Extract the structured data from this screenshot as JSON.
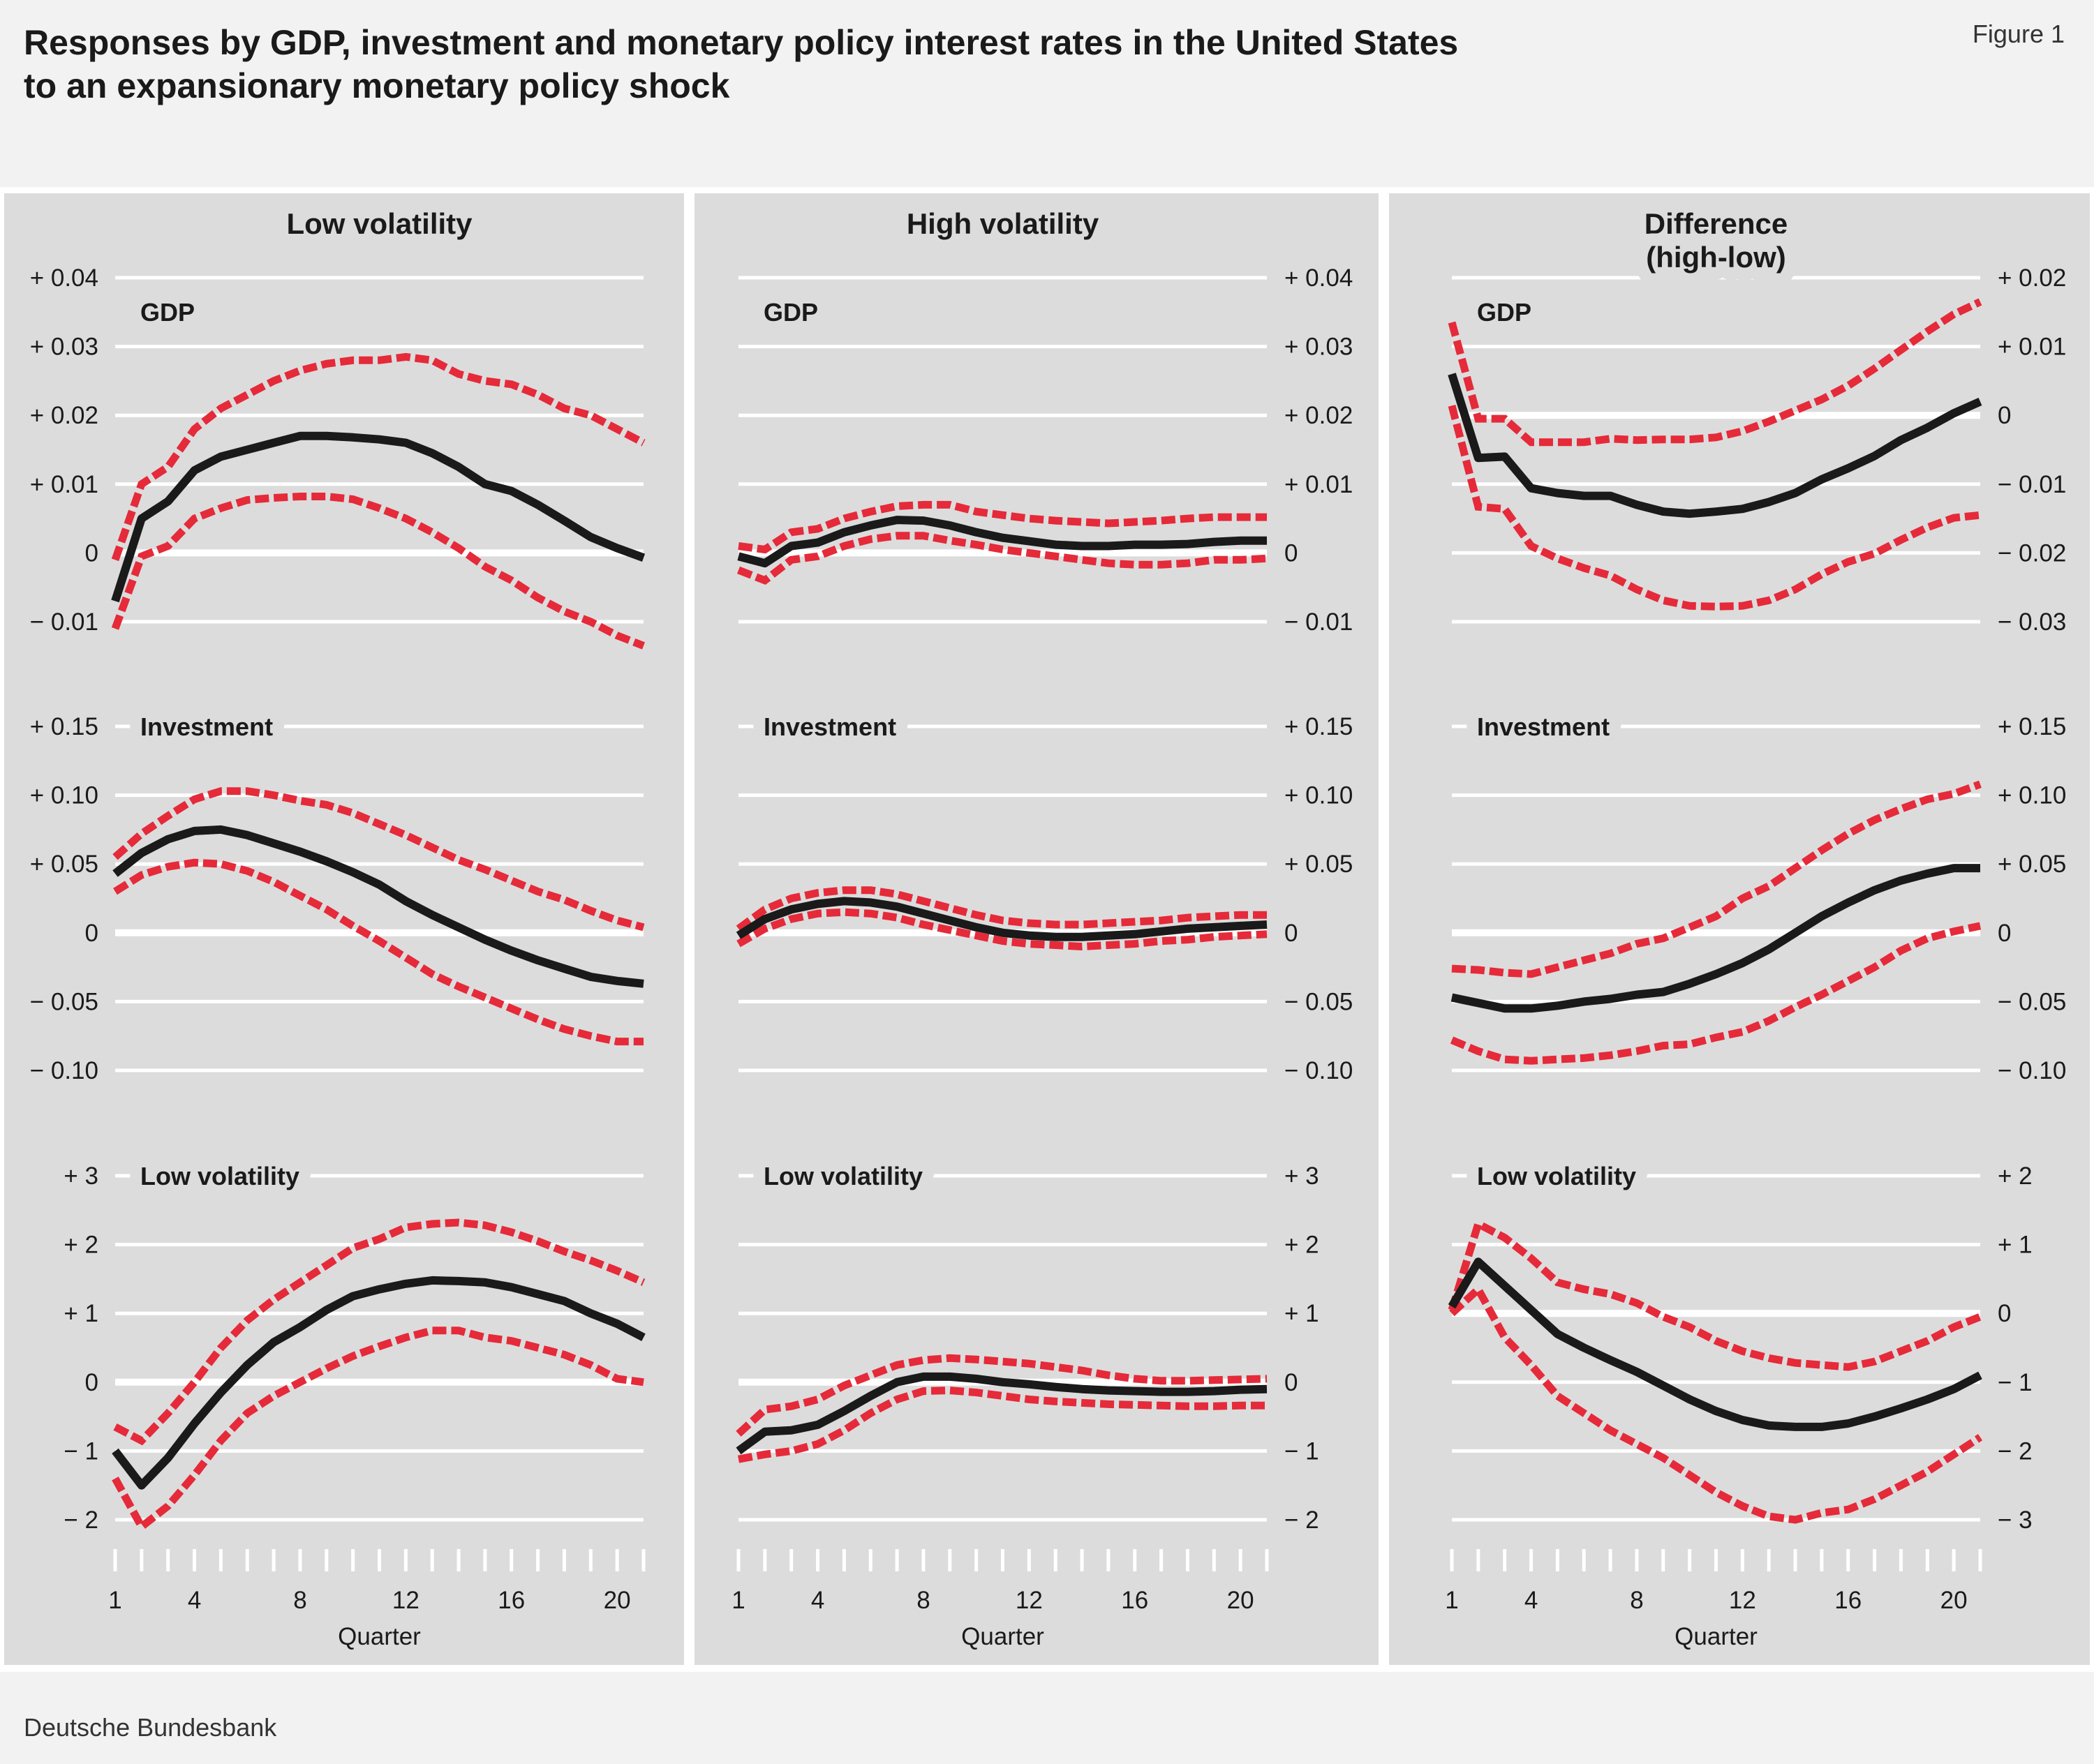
{
  "header": {
    "title_line1": "Responses by GDP, investment and monetary policy interest rates in the United States",
    "title_line2": "to an expansionary monetary policy shock",
    "figure_label": "Figure 1"
  },
  "footer": {
    "source": "Deutsche Bundesbank"
  },
  "colors": {
    "page_bg": "#f2f2f2",
    "panel_bg": "#dcdcdc",
    "grid": "#ffffff",
    "response": "#1a1a1a",
    "band": "#e52a3a"
  },
  "chart_data": {
    "type": "line",
    "columns": [
      "Low volatility",
      "High volatility",
      "Difference (high-low)"
    ],
    "column_headers": [
      [
        "Low volatility"
      ],
      [
        "High volatility"
      ],
      [
        "Difference",
        "(high-low)"
      ]
    ],
    "x": [
      1,
      2,
      3,
      4,
      5,
      6,
      7,
      8,
      9,
      10,
      11,
      12,
      13,
      14,
      15,
      16,
      17,
      18,
      19,
      20,
      21
    ],
    "xlabel": "Quarter",
    "xtick_labels": [
      "1",
      "4",
      "8",
      "12",
      "16",
      "20"
    ],
    "xtick_values": [
      1,
      4,
      8,
      12,
      16,
      20
    ],
    "grid": true,
    "line_styles": {
      "response": "solid black",
      "bands": "dashed red"
    },
    "panels": [
      [
        {
          "label": "GDP",
          "ylim": [
            -0.01,
            0.04
          ],
          "yticks": [
            0.04,
            0.03,
            0.02,
            0.01,
            0,
            -0.01
          ],
          "ytick_labels": [
            "+ 0.04",
            "+ 0.03",
            "+ 0.02",
            "+ 0.01",
            "0",
            "− 0.01"
          ],
          "response": [
            -0.007,
            0.005,
            0.0075,
            0.012,
            0.014,
            0.015,
            0.016,
            0.017,
            0.017,
            0.0168,
            0.0165,
            0.016,
            0.0145,
            0.0125,
            0.01,
            0.009,
            0.007,
            0.0047,
            0.0023,
            0.0007,
            -0.0007
          ],
          "upper": [
            -0.001,
            0.01,
            0.0125,
            0.018,
            0.021,
            0.023,
            0.025,
            0.0265,
            0.0275,
            0.028,
            0.028,
            0.0285,
            0.028,
            0.026,
            0.025,
            0.0245,
            0.023,
            0.021,
            0.02,
            0.018,
            0.016
          ],
          "lower": [
            -0.011,
            -0.0005,
            0.001,
            0.005,
            0.0065,
            0.0077,
            0.008,
            0.0082,
            0.0082,
            0.0078,
            0.0065,
            0.005,
            0.003,
            0.0007,
            -0.002,
            -0.004,
            -0.0065,
            -0.0085,
            -0.01,
            -0.012,
            -0.0135
          ]
        },
        {
          "label": "GDP",
          "ylim": [
            -0.01,
            0.04
          ],
          "yticks": [
            0.04,
            0.03,
            0.02,
            0.01,
            0,
            -0.01
          ],
          "ytick_labels": [
            "+ 0.04",
            "+ 0.03",
            "+ 0.02",
            "+ 0.01",
            "0",
            "− 0.01"
          ],
          "response": [
            -0.0005,
            -0.0015,
            0.001,
            0.0015,
            0.003,
            0.004,
            0.0048,
            0.0047,
            0.004,
            0.003,
            0.0022,
            0.0017,
            0.0012,
            0.001,
            0.001,
            0.0012,
            0.0012,
            0.0013,
            0.0016,
            0.0018,
            0.0018
          ],
          "upper": [
            0.001,
            0.0005,
            0.003,
            0.0035,
            0.005,
            0.006,
            0.0068,
            0.007,
            0.007,
            0.006,
            0.0055,
            0.005,
            0.0047,
            0.0045,
            0.0043,
            0.0045,
            0.0047,
            0.005,
            0.0052,
            0.0052,
            0.0052
          ],
          "lower": [
            -0.0025,
            -0.004,
            -0.001,
            -0.0005,
            0.001,
            0.002,
            0.0025,
            0.0025,
            0.0018,
            0.0012,
            0.0005,
            0,
            -0.0005,
            -0.001,
            -0.0015,
            -0.0017,
            -0.0017,
            -0.0015,
            -0.001,
            -0.001,
            -0.0008
          ]
        },
        {
          "label": "GDP",
          "ylim": [
            -0.03,
            0.02
          ],
          "yticks": [
            0.02,
            0.01,
            0,
            -0.01,
            -0.02,
            -0.03
          ],
          "ytick_labels": [
            "+ 0.02",
            "+ 0.01",
            "0",
            "− 0.01",
            "− 0.02",
            "− 0.03"
          ],
          "response": [
            0.006,
            -0.0062,
            -0.006,
            -0.0106,
            -0.0113,
            -0.0117,
            -0.0117,
            -0.013,
            -0.014,
            -0.0143,
            -0.014,
            -0.0136,
            -0.0126,
            -0.0113,
            -0.0093,
            -0.0077,
            -0.0059,
            -0.0036,
            -0.0018,
            0.0003,
            0.002
          ],
          "upper": [
            0.0135,
            -0.0005,
            -0.0005,
            -0.0039,
            -0.0039,
            -0.0039,
            -0.0034,
            -0.0036,
            -0.0035,
            -0.0035,
            -0.0032,
            -0.0023,
            -0.0009,
            0.0007,
            0.0023,
            0.0043,
            0.0068,
            0.0095,
            0.0122,
            0.0147,
            0.0165
          ],
          "lower": [
            0.0014,
            -0.0133,
            -0.0136,
            -0.019,
            -0.0208,
            -0.0222,
            -0.0233,
            -0.0253,
            -0.0269,
            -0.0277,
            -0.0278,
            -0.0277,
            -0.0269,
            -0.0253,
            -0.0231,
            -0.0213,
            -0.0201,
            -0.0181,
            -0.0163,
            -0.0149,
            -0.0145
          ]
        }
      ],
      [
        {
          "label": "Investment",
          "ylim": [
            -0.1,
            0.15
          ],
          "yticks": [
            0.15,
            0.1,
            0.05,
            0,
            -0.05,
            -0.1
          ],
          "ytick_labels": [
            "+ 0.15",
            "+ 0.10",
            "+ 0.05",
            "0",
            "− 0.05",
            "− 0.10"
          ],
          "response": [
            0.043,
            0.058,
            0.068,
            0.074,
            0.075,
            0.071,
            0.065,
            0.059,
            0.052,
            0.044,
            0.035,
            0.023,
            0.013,
            0.004,
            -0.005,
            -0.013,
            -0.02,
            -0.026,
            -0.032,
            -0.035,
            -0.037
          ],
          "upper": [
            0.055,
            0.072,
            0.085,
            0.097,
            0.103,
            0.103,
            0.1,
            0.096,
            0.093,
            0.087,
            0.079,
            0.071,
            0.062,
            0.053,
            0.046,
            0.038,
            0.03,
            0.024,
            0.016,
            0.009,
            0.004
          ],
          "lower": [
            0.03,
            0.042,
            0.048,
            0.051,
            0.05,
            0.045,
            0.037,
            0.027,
            0.017,
            0.005,
            -0.006,
            -0.018,
            -0.03,
            -0.039,
            -0.047,
            -0.055,
            -0.063,
            -0.07,
            -0.075,
            -0.079,
            -0.079
          ]
        },
        {
          "label": "Investment",
          "ylim": [
            -0.1,
            0.15
          ],
          "yticks": [
            0.15,
            0.1,
            0.05,
            0,
            -0.05,
            -0.1
          ],
          "ytick_labels": [
            "+ 0.15",
            "+ 0.10",
            "+ 0.05",
            "0",
            "− 0.05",
            "− 0.10"
          ],
          "response": [
            -0.002,
            0.01,
            0.017,
            0.021,
            0.023,
            0.022,
            0.019,
            0.014,
            0.009,
            0.004,
            0,
            -0.002,
            -0.003,
            -0.003,
            -0.002,
            -0.001,
            0.001,
            0.003,
            0.004,
            0.005,
            0.006
          ],
          "upper": [
            0.003,
            0.017,
            0.025,
            0.029,
            0.031,
            0.031,
            0.028,
            0.023,
            0.018,
            0.013,
            0.009,
            0.007,
            0.006,
            0.006,
            0.007,
            0.008,
            0.009,
            0.011,
            0.012,
            0.013,
            0.013
          ],
          "lower": [
            -0.008,
            0.003,
            0.01,
            0.014,
            0.015,
            0.014,
            0.011,
            0.006,
            0.002,
            -0.002,
            -0.006,
            -0.008,
            -0.009,
            -0.01,
            -0.009,
            -0.008,
            -0.006,
            -0.005,
            -0.003,
            -0.002,
            -0.001
          ]
        },
        {
          "label": "Investment",
          "ylim": [
            -0.1,
            0.15
          ],
          "yticks": [
            0.15,
            0.1,
            0.05,
            0,
            -0.05,
            -0.1
          ],
          "ytick_labels": [
            "+ 0.15",
            "+ 0.10",
            "+ 0.05",
            "0",
            "− 0.05",
            "− 0.10"
          ],
          "response": [
            -0.047,
            -0.051,
            -0.055,
            -0.055,
            -0.053,
            -0.05,
            -0.048,
            -0.045,
            -0.043,
            -0.037,
            -0.03,
            -0.022,
            -0.012,
            0,
            0.012,
            0.022,
            0.031,
            0.038,
            0.043,
            0.047,
            0.047
          ],
          "upper": [
            -0.026,
            -0.027,
            -0.029,
            -0.03,
            -0.025,
            -0.02,
            -0.015,
            -0.008,
            -0.004,
            0.004,
            0.012,
            0.025,
            0.034,
            0.047,
            0.06,
            0.072,
            0.082,
            0.09,
            0.097,
            0.101,
            0.108
          ],
          "lower": [
            -0.078,
            -0.086,
            -0.092,
            -0.093,
            -0.092,
            -0.091,
            -0.089,
            -0.086,
            -0.082,
            -0.081,
            -0.076,
            -0.072,
            -0.064,
            -0.054,
            -0.045,
            -0.035,
            -0.025,
            -0.013,
            -0.004,
            0.001,
            0.005
          ]
        }
      ],
      [
        {
          "label": "Low volatility",
          "ylim": [
            -2,
            3
          ],
          "yticks": [
            3,
            2,
            1,
            0,
            -1,
            -2
          ],
          "ytick_labels": [
            "+ 3",
            "+ 2",
            "+ 1",
            "0",
            "− 1",
            "− 2"
          ],
          "response": [
            -1.0,
            -1.5,
            -1.1,
            -0.6,
            -0.15,
            0.25,
            0.58,
            0.8,
            1.05,
            1.25,
            1.35,
            1.43,
            1.48,
            1.47,
            1.45,
            1.38,
            1.28,
            1.18,
            1.0,
            0.85,
            0.65
          ],
          "upper": [
            -0.65,
            -0.85,
            -0.45,
            0.0,
            0.5,
            0.9,
            1.2,
            1.45,
            1.7,
            1.95,
            2.08,
            2.25,
            2.3,
            2.32,
            2.28,
            2.18,
            2.05,
            1.9,
            1.77,
            1.62,
            1.45
          ],
          "lower": [
            -1.4,
            -2.1,
            -1.8,
            -1.35,
            -0.85,
            -0.45,
            -0.2,
            0.0,
            0.2,
            0.38,
            0.52,
            0.65,
            0.75,
            0.75,
            0.65,
            0.6,
            0.5,
            0.4,
            0.25,
            0.05,
            0.0
          ]
        },
        {
          "label": "Low volatility",
          "ylim": [
            -2,
            3
          ],
          "yticks": [
            3,
            2,
            1,
            0,
            -1,
            -2
          ],
          "ytick_labels": [
            "+ 3",
            "+ 2",
            "+ 1",
            "0",
            "− 1",
            "− 2"
          ],
          "response": [
            -1.0,
            -0.72,
            -0.7,
            -0.62,
            -0.42,
            -0.2,
            0.0,
            0.08,
            0.08,
            0.05,
            0.0,
            -0.03,
            -0.07,
            -0.1,
            -0.12,
            -0.13,
            -0.14,
            -0.14,
            -0.13,
            -0.11,
            -0.1
          ],
          "upper": [
            -0.75,
            -0.4,
            -0.35,
            -0.25,
            -0.05,
            0.1,
            0.25,
            0.32,
            0.35,
            0.33,
            0.3,
            0.27,
            0.22,
            0.17,
            0.1,
            0.05,
            0.02,
            0.02,
            0.03,
            0.04,
            0.05
          ],
          "lower": [
            -1.12,
            -1.05,
            -1.0,
            -0.9,
            -0.7,
            -0.45,
            -0.25,
            -0.13,
            -0.12,
            -0.15,
            -0.2,
            -0.25,
            -0.28,
            -0.3,
            -0.32,
            -0.33,
            -0.34,
            -0.35,
            -0.35,
            -0.34,
            -0.34
          ]
        },
        {
          "label": "Low volatility",
          "ylim": [
            -3,
            2
          ],
          "yticks": [
            2,
            1,
            0,
            -1,
            -2,
            -3
          ],
          "ytick_labels": [
            "+ 2",
            "+ 1",
            "0",
            "− 1",
            "− 2",
            "− 3"
          ],
          "response": [
            0.1,
            0.75,
            0.4,
            0.05,
            -0.3,
            -0.5,
            -0.68,
            -0.85,
            -1.05,
            -1.25,
            -1.42,
            -1.55,
            -1.63,
            -1.65,
            -1.65,
            -1.6,
            -1.5,
            -1.38,
            -1.25,
            -1.1,
            -0.9
          ],
          "upper": [
            0.05,
            1.3,
            1.1,
            0.8,
            0.45,
            0.35,
            0.28,
            0.15,
            -0.05,
            -0.2,
            -0.4,
            -0.55,
            -0.65,
            -0.72,
            -0.75,
            -0.78,
            -0.7,
            -0.55,
            -0.4,
            -0.2,
            -0.05
          ],
          "lower": [
            0.0,
            0.35,
            -0.35,
            -0.75,
            -1.2,
            -1.45,
            -1.7,
            -1.9,
            -2.1,
            -2.35,
            -2.6,
            -2.8,
            -2.95,
            -3.0,
            -2.9,
            -2.85,
            -2.7,
            -2.5,
            -2.3,
            -2.05,
            -1.8
          ]
        }
      ]
    ]
  }
}
